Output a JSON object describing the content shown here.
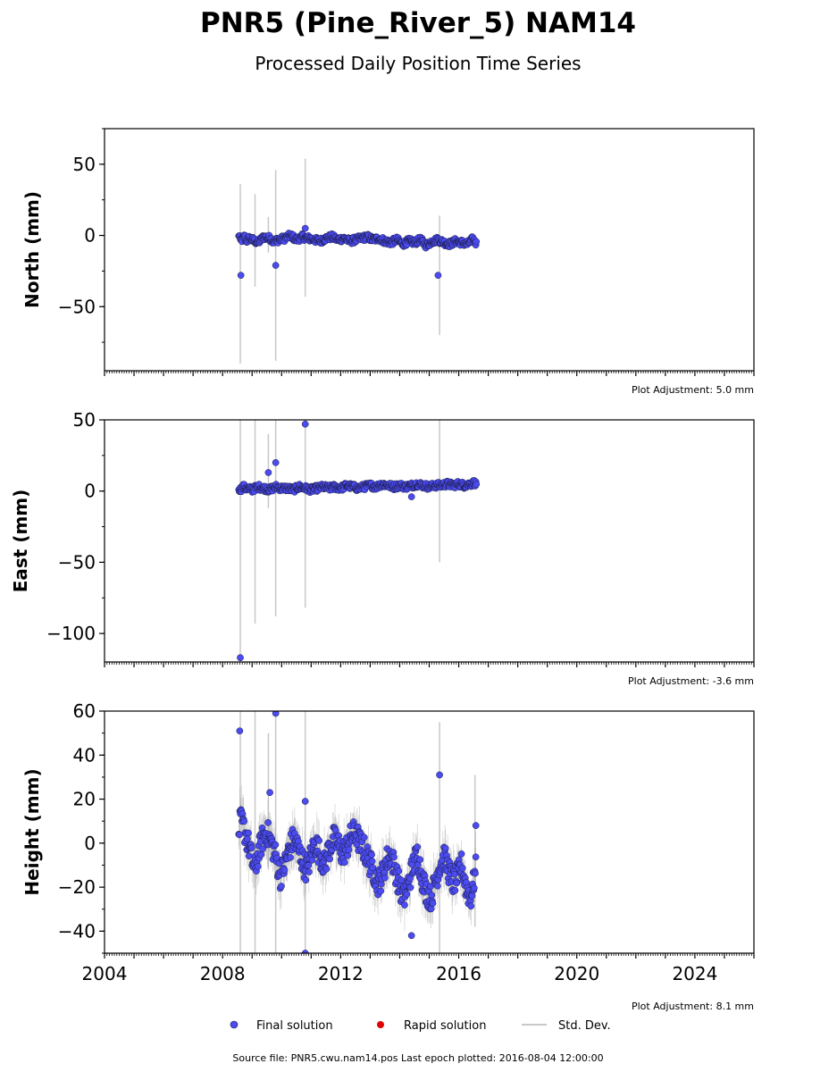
{
  "title": "PNR5 (Pine_River_5) NAM14",
  "subtitle": "Processed Daily Position Time Series",
  "legend": {
    "final": "Final solution",
    "rapid": "Rapid solution",
    "std": "Std. Dev."
  },
  "footer": "Source file: PNR5.cwu.nam14.pos  Last epoch plotted: 2016-08-04 12:00:00",
  "colors": {
    "final": "#4b4bf0",
    "final_edge": "#1a1a40",
    "rapid": "#e00000",
    "std": "#c8c8c8"
  },
  "chart_data": [
    {
      "type": "scatter",
      "ylabel": "North (mm)",
      "adjustment": "Plot Adjustment: 5.0 mm",
      "xlim": [
        2004,
        2026
      ],
      "ylim": [
        -95,
        75
      ],
      "yticks": [
        50,
        0,
        -50
      ],
      "yticklabels": [
        "50",
        "0",
        "−50"
      ],
      "series": [
        {
          "name": "Final solution",
          "x": [
            2008.55,
            2008.58,
            2008.6,
            2008.65,
            2008.7,
            2008.75,
            2008.8,
            2008.9,
            2009.0,
            2009.2,
            2009.4,
            2009.6,
            2009.75,
            2009.9,
            2010.1,
            2010.3,
            2010.5,
            2010.7,
            2010.9,
            2011.1,
            2011.3,
            2011.5,
            2011.7,
            2011.9,
            2012.1,
            2012.3,
            2012.5,
            2012.7,
            2012.9,
            2013.1,
            2013.3,
            2013.5,
            2013.7,
            2013.9,
            2014.1,
            2014.3,
            2014.5,
            2014.7,
            2014.9,
            2015.1,
            2015.3,
            2015.5,
            2015.7,
            2015.9,
            2016.1,
            2016.3,
            2016.45,
            2016.55,
            2016.6
          ],
          "y": [
            -1,
            1,
            -5,
            -3,
            -2,
            0,
            -4,
            -2,
            -3,
            -5,
            -1,
            -2,
            -4,
            -3,
            -2,
            0,
            -3,
            -1,
            -2,
            -3,
            -4,
            -2,
            -1,
            -3,
            -2,
            -4,
            -3,
            -2,
            -1,
            -3,
            -2,
            -4,
            -5,
            -3,
            -6,
            -4,
            -5,
            -3,
            -7,
            -4,
            -3,
            -5,
            -6,
            -4,
            -5,
            -6,
            -3,
            -4,
            -6
          ],
          "outliers_x": [
            2008.62,
            2009.8,
            2010.8,
            2015.3
          ],
          "outliers_y": [
            -28,
            -21,
            5,
            -28
          ]
        }
      ],
      "std_bars": {
        "x": [
          2008.6,
          2009.1,
          2009.55,
          2009.8,
          2010.8,
          2015.35
        ],
        "low": [
          -90,
          -36,
          -12,
          -88,
          -43,
          -70
        ],
        "high": [
          36,
          29,
          13,
          46,
          54,
          14
        ]
      }
    },
    {
      "type": "scatter",
      "ylabel": "East (mm)",
      "adjustment": "Plot Adjustment: -3.6 mm",
      "xlim": [
        2004,
        2026
      ],
      "ylim": [
        -120,
        50
      ],
      "yticks": [
        50,
        0,
        -50,
        -100
      ],
      "yticklabels": [
        "50",
        "0",
        "−50",
        "−100"
      ],
      "series": [
        {
          "name": "Final solution",
          "x": [
            2008.55,
            2008.6,
            2008.7,
            2008.8,
            2009.0,
            2009.2,
            2009.4,
            2009.6,
            2009.8,
            2010.0,
            2010.2,
            2010.4,
            2010.6,
            2010.8,
            2011.0,
            2011.2,
            2011.4,
            2011.6,
            2011.8,
            2012.0,
            2012.2,
            2012.4,
            2012.6,
            2012.8,
            2013.0,
            2013.2,
            2013.4,
            2013.6,
            2013.8,
            2014.0,
            2014.2,
            2014.4,
            2014.6,
            2014.8,
            2015.0,
            2015.2,
            2015.4,
            2015.6,
            2015.8,
            2016.0,
            2016.2,
            2016.4,
            2016.55,
            2016.6
          ],
          "y": [
            2,
            1,
            3,
            2,
            1,
            3,
            2,
            1,
            3,
            2,
            2,
            1,
            3,
            2,
            1,
            2,
            3,
            2,
            3,
            2,
            4,
            3,
            2,
            3,
            4,
            3,
            5,
            4,
            3,
            4,
            3,
            4,
            5,
            4,
            3,
            4,
            4,
            5,
            4,
            5,
            4,
            5,
            6,
            4
          ],
          "outliers_x": [
            2008.6,
            2009.55,
            2009.8,
            2010.8,
            2014.4
          ],
          "outliers_y": [
            -117,
            13,
            20,
            47,
            -4
          ]
        }
      ],
      "std_bars": {
        "x": [
          2008.6,
          2009.1,
          2009.55,
          2009.8,
          2010.8,
          2015.35
        ],
        "low": [
          -120,
          -93,
          -12,
          -88,
          -82,
          -50
        ],
        "high": [
          50,
          50,
          40,
          50,
          50,
          50
        ]
      }
    },
    {
      "type": "scatter",
      "ylabel": "Height (mm)",
      "adjustment": "Plot Adjustment: 8.1 mm",
      "xlim": [
        2004,
        2026
      ],
      "ylim": [
        -50,
        60
      ],
      "yticks": [
        60,
        40,
        20,
        0,
        -20,
        -40
      ],
      "yticklabels": [
        "60",
        "40",
        "20",
        "0",
        "−20",
        "−40"
      ],
      "xticks": [
        2004,
        2008,
        2012,
        2016,
        2020,
        2024
      ],
      "xticklabels": [
        "2004",
        "2008",
        "2012",
        "2016",
        "2020",
        "2024"
      ],
      "series": [
        {
          "name": "Final solution",
          "x": [
            2008.55,
            2008.6,
            2008.7,
            2008.8,
            2008.9,
            2009.0,
            2009.1,
            2009.2,
            2009.35,
            2009.5,
            2009.65,
            2009.8,
            2009.95,
            2010.1,
            2010.25,
            2010.4,
            2010.55,
            2010.7,
            2010.85,
            2011.0,
            2011.15,
            2011.3,
            2011.45,
            2011.6,
            2011.75,
            2011.9,
            2012.05,
            2012.2,
            2012.35,
            2012.5,
            2012.65,
            2012.8,
            2012.95,
            2013.1,
            2013.25,
            2013.4,
            2013.55,
            2013.7,
            2013.85,
            2014.0,
            2014.15,
            2014.3,
            2014.45,
            2014.6,
            2014.75,
            2014.9,
            2015.05,
            2015.2,
            2015.35,
            2015.5,
            2015.65,
            2015.8,
            2015.95,
            2016.1,
            2016.25,
            2016.4,
            2016.5,
            2016.58
          ],
          "y": [
            5,
            10,
            8,
            3,
            -2,
            -8,
            -12,
            -5,
            2,
            5,
            0,
            -6,
            -15,
            -10,
            -3,
            2,
            -2,
            -8,
            -12,
            -5,
            0,
            -5,
            -10,
            -3,
            2,
            0,
            -5,
            -2,
            3,
            5,
            0,
            -3,
            -8,
            -12,
            -18,
            -15,
            -8,
            -5,
            -12,
            -20,
            -25,
            -18,
            -10,
            -5,
            -15,
            -22,
            -25,
            -18,
            -10,
            -6,
            -12,
            -18,
            -15,
            -10,
            -20,
            -25,
            -18,
            -12
          ],
          "outliers_x": [
            2008.58,
            2009.6,
            2009.8,
            2010.8,
            2010.8,
            2014.4,
            2015.35,
            2016.58
          ],
          "outliers_y": [
            51,
            23,
            59,
            19,
            -50,
            -42,
            31,
            8
          ]
        }
      ],
      "std_bars": {
        "x": [
          2008.6,
          2009.1,
          2009.55,
          2009.8,
          2010.8,
          2015.35,
          2016.55
        ],
        "low": [
          -50,
          -50,
          -12,
          -50,
          -50,
          -50,
          -38
        ],
        "high": [
          60,
          60,
          50,
          60,
          60,
          55,
          31
        ]
      }
    }
  ]
}
